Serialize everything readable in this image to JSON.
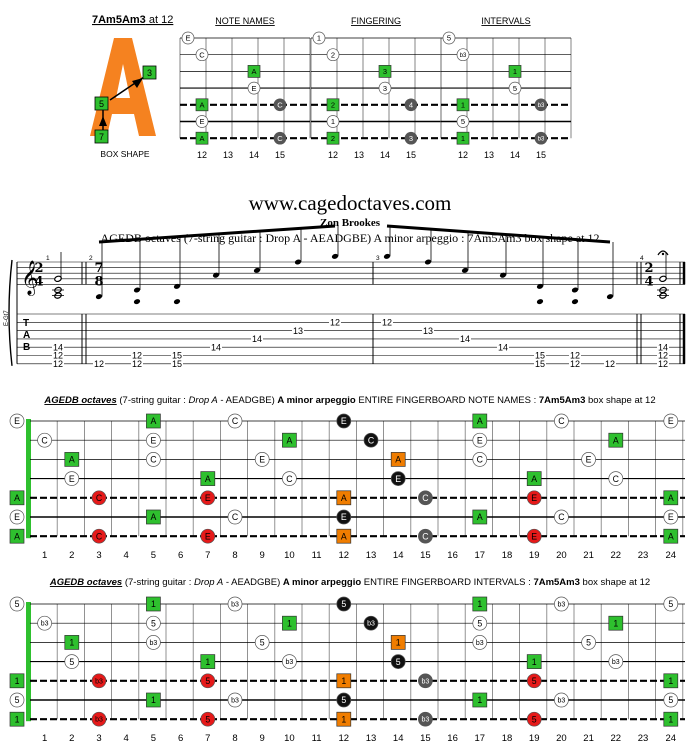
{
  "header": {
    "shape_title": "7Am5Am3",
    "shape_title_suffix": " at 12",
    "box_shape_label": "BOX SHAPE",
    "box_markers": [
      "3",
      "5",
      "7"
    ],
    "panel_titles": [
      "NOTE NAMES",
      "FINGERING",
      "INTERVALS"
    ],
    "fret_numbers": [
      "12",
      "13",
      "14",
      "15"
    ]
  },
  "panels": {
    "note_names": [
      {
        "s": 1,
        "f": 0,
        "t": "E",
        "k": "o"
      },
      {
        "s": 2,
        "f": 1,
        "t": "C",
        "k": "o"
      },
      {
        "s": 3,
        "f": 3,
        "t": "A",
        "k": "g"
      },
      {
        "s": 4,
        "f": 3,
        "t": "E",
        "k": "o"
      },
      {
        "s": 5,
        "f": 1,
        "t": "A",
        "k": "g"
      },
      {
        "s": 5,
        "f": 4,
        "t": "C",
        "k": "d"
      },
      {
        "s": 6,
        "f": 1,
        "t": "E",
        "k": "o"
      },
      {
        "s": 7,
        "f": 1,
        "t": "A",
        "k": "g"
      },
      {
        "s": 7,
        "f": 4,
        "t": "C",
        "k": "d"
      }
    ],
    "fingering": [
      {
        "s": 1,
        "f": 0,
        "t": "1",
        "k": "o"
      },
      {
        "s": 2,
        "f": 1,
        "t": "2",
        "k": "o"
      },
      {
        "s": 3,
        "f": 3,
        "t": "3",
        "k": "g"
      },
      {
        "s": 4,
        "f": 3,
        "t": "3",
        "k": "o"
      },
      {
        "s": 5,
        "f": 1,
        "t": "2",
        "k": "g"
      },
      {
        "s": 5,
        "f": 4,
        "t": "4",
        "k": "d"
      },
      {
        "s": 6,
        "f": 1,
        "t": "1",
        "k": "o"
      },
      {
        "s": 7,
        "f": 1,
        "t": "2",
        "k": "g"
      },
      {
        "s": 7,
        "f": 4,
        "t": "3",
        "k": "d"
      }
    ],
    "intervals": [
      {
        "s": 1,
        "f": 0,
        "t": "5",
        "k": "o"
      },
      {
        "s": 2,
        "f": 1,
        "t": "b3",
        "k": "o"
      },
      {
        "s": 3,
        "f": 3,
        "t": "1",
        "k": "g"
      },
      {
        "s": 4,
        "f": 3,
        "t": "5",
        "k": "o"
      },
      {
        "s": 5,
        "f": 1,
        "t": "1",
        "k": "g"
      },
      {
        "s": 5,
        "f": 4,
        "t": "b3",
        "k": "d"
      },
      {
        "s": 6,
        "f": 1,
        "t": "5",
        "k": "o"
      },
      {
        "s": 7,
        "f": 1,
        "t": "1",
        "k": "g"
      },
      {
        "s": 7,
        "f": 4,
        "t": "b3",
        "k": "d"
      }
    ]
  },
  "site": {
    "url": "www.cagedoctaves.com",
    "author": "Zon Brookes",
    "subtitle": "AGEDB octaves (7-string guitar : Drop A - AEADGBE) A minor arpeggio : 7Am5Am3 box shape at 12"
  },
  "notation": {
    "guitar_label": "E-Gt7",
    "tab_letters": [
      "T",
      "A",
      "B"
    ],
    "time_sig_1": [
      "2",
      "4"
    ],
    "time_sig_2": [
      "7",
      "8"
    ],
    "time_sig_3": [
      "2",
      "4"
    ],
    "measure_numbers": [
      "1",
      "2",
      "3",
      "4"
    ],
    "tab_numbers": [
      {
        "m": 1,
        "i": 0,
        "s": 5,
        "t": "14"
      },
      {
        "m": 1,
        "i": 0,
        "s": 6,
        "t": "12"
      },
      {
        "m": 1,
        "i": 0,
        "s": 7,
        "t": "12"
      },
      {
        "m": 2,
        "i": 0,
        "s": 7,
        "t": "12"
      },
      {
        "m": 2,
        "i": 1,
        "s": 6,
        "t": "12"
      },
      {
        "m": 2,
        "i": 1,
        "s": 7,
        "t": "12"
      },
      {
        "m": 2,
        "i": 2,
        "s": 6,
        "t": "15"
      },
      {
        "m": 2,
        "i": 2,
        "s": 7,
        "t": "15"
      },
      {
        "m": 2,
        "i": 3,
        "s": 5,
        "t": "14"
      },
      {
        "m": 2,
        "i": 4,
        "s": 4,
        "t": "14"
      },
      {
        "m": 2,
        "i": 5,
        "s": 3,
        "t": "13"
      },
      {
        "m": 2,
        "i": 6,
        "s": 2,
        "t": "12"
      },
      {
        "m": 3,
        "i": 0,
        "s": 2,
        "t": "12"
      },
      {
        "m": 3,
        "i": 1,
        "s": 3,
        "t": "13"
      },
      {
        "m": 3,
        "i": 2,
        "s": 4,
        "t": "14"
      },
      {
        "m": 3,
        "i": 3,
        "s": 5,
        "t": "14"
      },
      {
        "m": 3,
        "i": 4,
        "s": 6,
        "t": "15"
      },
      {
        "m": 3,
        "i": 4,
        "s": 7,
        "t": "15"
      },
      {
        "m": 3,
        "i": 5,
        "s": 6,
        "t": "12"
      },
      {
        "m": 3,
        "i": 5,
        "s": 7,
        "t": "12"
      },
      {
        "m": 3,
        "i": 6,
        "s": 7,
        "t": "12"
      },
      {
        "m": 4,
        "i": 0,
        "s": 5,
        "t": "14"
      },
      {
        "m": 4,
        "i": 0,
        "s": 6,
        "t": "12"
      },
      {
        "m": 4,
        "i": 0,
        "s": 7,
        "t": "12"
      }
    ]
  },
  "full_notes": {
    "title_italic": "AGEDB octaves",
    "title_mid": " (7-string guitar : ",
    "title_drop": "Drop A",
    "title_tuning": " - AEADGBE) ",
    "title_arp": "A minor arpeggio",
    "title_tail": " ENTIRE FINGERBOARD NOTE NAMES : ",
    "title_shape": "7Am5Am3",
    "title_end": " box shape at 12",
    "dots": [
      {
        "s": 1,
        "f": 0,
        "t": "E",
        "k": "o"
      },
      {
        "s": 1,
        "f": 5,
        "t": "A",
        "k": "g"
      },
      {
        "s": 1,
        "f": 8,
        "t": "C",
        "k": "o"
      },
      {
        "s": 1,
        "f": 12,
        "t": "E",
        "k": "b"
      },
      {
        "s": 1,
        "f": 17,
        "t": "A",
        "k": "g"
      },
      {
        "s": 1,
        "f": 20,
        "t": "C",
        "k": "o"
      },
      {
        "s": 1,
        "f": 24,
        "t": "E",
        "k": "o"
      },
      {
        "s": 2,
        "f": 1,
        "t": "C",
        "k": "o"
      },
      {
        "s": 2,
        "f": 5,
        "t": "E",
        "k": "o"
      },
      {
        "s": 2,
        "f": 10,
        "t": "A",
        "k": "g"
      },
      {
        "s": 2,
        "f": 13,
        "t": "C",
        "k": "b"
      },
      {
        "s": 2,
        "f": 17,
        "t": "E",
        "k": "o"
      },
      {
        "s": 2,
        "f": 22,
        "t": "A",
        "k": "g"
      },
      {
        "s": 3,
        "f": 2,
        "t": "A",
        "k": "g"
      },
      {
        "s": 3,
        "f": 5,
        "t": "C",
        "k": "o"
      },
      {
        "s": 3,
        "f": 9,
        "t": "E",
        "k": "o"
      },
      {
        "s": 3,
        "f": 14,
        "t": "A",
        "k": "a"
      },
      {
        "s": 3,
        "f": 17,
        "t": "C",
        "k": "o"
      },
      {
        "s": 3,
        "f": 21,
        "t": "E",
        "k": "o"
      },
      {
        "s": 4,
        "f": 2,
        "t": "E",
        "k": "o"
      },
      {
        "s": 4,
        "f": 7,
        "t": "A",
        "k": "g"
      },
      {
        "s": 4,
        "f": 10,
        "t": "C",
        "k": "o"
      },
      {
        "s": 4,
        "f": 14,
        "t": "E",
        "k": "b"
      },
      {
        "s": 4,
        "f": 19,
        "t": "A",
        "k": "g"
      },
      {
        "s": 4,
        "f": 22,
        "t": "C",
        "k": "o"
      },
      {
        "s": 5,
        "f": 0,
        "t": "A",
        "k": "g"
      },
      {
        "s": 5,
        "f": 3,
        "t": "C",
        "k": "r"
      },
      {
        "s": 5,
        "f": 7,
        "t": "E",
        "k": "r"
      },
      {
        "s": 5,
        "f": 12,
        "t": "A",
        "k": "a"
      },
      {
        "s": 5,
        "f": 15,
        "t": "C",
        "k": "d"
      },
      {
        "s": 5,
        "f": 19,
        "t": "E",
        "k": "r"
      },
      {
        "s": 5,
        "f": 24,
        "t": "A",
        "k": "g"
      },
      {
        "s": 6,
        "f": 0,
        "t": "E",
        "k": "o"
      },
      {
        "s": 6,
        "f": 5,
        "t": "A",
        "k": "g"
      },
      {
        "s": 6,
        "f": 8,
        "t": "C",
        "k": "o"
      },
      {
        "s": 6,
        "f": 12,
        "t": "E",
        "k": "b"
      },
      {
        "s": 6,
        "f": 17,
        "t": "A",
        "k": "g"
      },
      {
        "s": 6,
        "f": 20,
        "t": "C",
        "k": "o"
      },
      {
        "s": 6,
        "f": 24,
        "t": "E",
        "k": "o"
      },
      {
        "s": 7,
        "f": 0,
        "t": "A",
        "k": "g"
      },
      {
        "s": 7,
        "f": 3,
        "t": "C",
        "k": "r"
      },
      {
        "s": 7,
        "f": 7,
        "t": "E",
        "k": "r"
      },
      {
        "s": 7,
        "f": 12,
        "t": "A",
        "k": "a"
      },
      {
        "s": 7,
        "f": 15,
        "t": "C",
        "k": "d"
      },
      {
        "s": 7,
        "f": 19,
        "t": "E",
        "k": "r"
      },
      {
        "s": 7,
        "f": 24,
        "t": "A",
        "k": "g"
      }
    ]
  },
  "full_intervals": {
    "title_italic": "AGEDB octaves",
    "title_mid": " (7-string guitar : ",
    "title_drop": "Drop A",
    "title_tuning": " - AEADGBE) ",
    "title_arp": "A minor arpeggio",
    "title_tail": " ENTIRE FINGERBOARD INTERVALS : ",
    "title_shape": "7Am5Am3",
    "title_end": " box shape at 12",
    "dots": [
      {
        "s": 1,
        "f": 0,
        "t": "5",
        "k": "o"
      },
      {
        "s": 1,
        "f": 5,
        "t": "1",
        "k": "g"
      },
      {
        "s": 1,
        "f": 8,
        "t": "b3",
        "k": "o"
      },
      {
        "s": 1,
        "f": 12,
        "t": "5",
        "k": "b"
      },
      {
        "s": 1,
        "f": 17,
        "t": "1",
        "k": "g"
      },
      {
        "s": 1,
        "f": 20,
        "t": "b3",
        "k": "o"
      },
      {
        "s": 1,
        "f": 24,
        "t": "5",
        "k": "o"
      },
      {
        "s": 2,
        "f": 1,
        "t": "b3",
        "k": "o"
      },
      {
        "s": 2,
        "f": 5,
        "t": "5",
        "k": "o"
      },
      {
        "s": 2,
        "f": 10,
        "t": "1",
        "k": "g"
      },
      {
        "s": 2,
        "f": 13,
        "t": "b3",
        "k": "b"
      },
      {
        "s": 2,
        "f": 17,
        "t": "5",
        "k": "o"
      },
      {
        "s": 2,
        "f": 22,
        "t": "1",
        "k": "g"
      },
      {
        "s": 3,
        "f": 2,
        "t": "1",
        "k": "g"
      },
      {
        "s": 3,
        "f": 5,
        "t": "b3",
        "k": "o"
      },
      {
        "s": 3,
        "f": 9,
        "t": "5",
        "k": "o"
      },
      {
        "s": 3,
        "f": 14,
        "t": "1",
        "k": "a"
      },
      {
        "s": 3,
        "f": 17,
        "t": "b3",
        "k": "o"
      },
      {
        "s": 3,
        "f": 21,
        "t": "5",
        "k": "o"
      },
      {
        "s": 4,
        "f": 2,
        "t": "5",
        "k": "o"
      },
      {
        "s": 4,
        "f": 7,
        "t": "1",
        "k": "g"
      },
      {
        "s": 4,
        "f": 10,
        "t": "b3",
        "k": "o"
      },
      {
        "s": 4,
        "f": 14,
        "t": "5",
        "k": "b"
      },
      {
        "s": 4,
        "f": 19,
        "t": "1",
        "k": "g"
      },
      {
        "s": 4,
        "f": 22,
        "t": "b3",
        "k": "o"
      },
      {
        "s": 5,
        "f": 0,
        "t": "1",
        "k": "g"
      },
      {
        "s": 5,
        "f": 3,
        "t": "b3",
        "k": "r"
      },
      {
        "s": 5,
        "f": 7,
        "t": "5",
        "k": "r"
      },
      {
        "s": 5,
        "f": 12,
        "t": "1",
        "k": "a"
      },
      {
        "s": 5,
        "f": 15,
        "t": "b3",
        "k": "d"
      },
      {
        "s": 5,
        "f": 19,
        "t": "5",
        "k": "r"
      },
      {
        "s": 5,
        "f": 24,
        "t": "1",
        "k": "g"
      },
      {
        "s": 6,
        "f": 0,
        "t": "5",
        "k": "o"
      },
      {
        "s": 6,
        "f": 5,
        "t": "1",
        "k": "g"
      },
      {
        "s": 6,
        "f": 8,
        "t": "b3",
        "k": "o"
      },
      {
        "s": 6,
        "f": 12,
        "t": "5",
        "k": "b"
      },
      {
        "s": 6,
        "f": 17,
        "t": "1",
        "k": "g"
      },
      {
        "s": 6,
        "f": 20,
        "t": "b3",
        "k": "o"
      },
      {
        "s": 6,
        "f": 24,
        "t": "5",
        "k": "o"
      },
      {
        "s": 7,
        "f": 0,
        "t": "1",
        "k": "g"
      },
      {
        "s": 7,
        "f": 3,
        "t": "b3",
        "k": "r"
      },
      {
        "s": 7,
        "f": 7,
        "t": "5",
        "k": "r"
      },
      {
        "s": 7,
        "f": 12,
        "t": "1",
        "k": "a"
      },
      {
        "s": 7,
        "f": 15,
        "t": "b3",
        "k": "d"
      },
      {
        "s": 7,
        "f": 19,
        "t": "5",
        "k": "r"
      },
      {
        "s": 7,
        "f": 24,
        "t": "1",
        "k": "g"
      }
    ]
  },
  "fret_axis": [
    "1",
    "2",
    "3",
    "4",
    "5",
    "6",
    "7",
    "8",
    "9",
    "10",
    "11",
    "12",
    "13",
    "14",
    "15",
    "16",
    "17",
    "18",
    "19",
    "20",
    "21",
    "22",
    "23",
    "24"
  ],
  "colors": {
    "green": "#2ec02e",
    "orange": "#f07d00",
    "red": "#e61919",
    "dark": "#555555",
    "black": "#111111",
    "nut_green": "#2ec02e",
    "box_orange": "#f58220"
  }
}
